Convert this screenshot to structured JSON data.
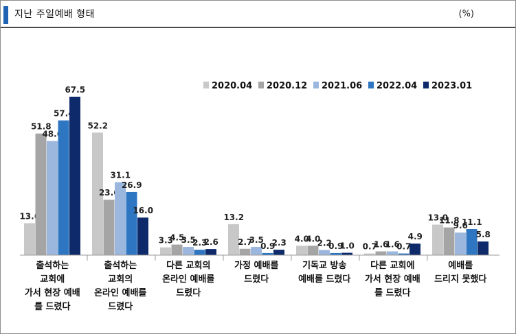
{
  "header": {
    "title": "지난 주일예배 형태",
    "unit": "(%)"
  },
  "chart_data": {
    "type": "bar",
    "categories": [
      [
        "출석하는",
        "교회에",
        "가서 현장 예배",
        "를 드렸다"
      ],
      [
        "출석하는",
        "교회의",
        "온라인 예배를",
        "드렸다"
      ],
      [
        "다른 교회의",
        "온라인 예배를",
        "드렸다"
      ],
      [
        "가정 예배를",
        "드렸다"
      ],
      [
        "기독교 방송",
        "예배를 드렸다"
      ],
      [
        "다른 교회에",
        "가서 현장 예배",
        "를 드렸다"
      ],
      [
        "예배를",
        "드리지 못했다"
      ]
    ],
    "series": [
      {
        "name": "2020.04",
        "color": "#c8c8c8",
        "values": [
          13.6,
          52.2,
          3.3,
          13.2,
          4.0,
          0.7,
          13.0
        ]
      },
      {
        "name": "2020.12",
        "color": "#a5a5a5",
        "values": [
          51.8,
          23.6,
          4.5,
          2.7,
          4.0,
          1.6,
          11.8
        ]
      },
      {
        "name": "2021.06",
        "color": "#9bb7dd",
        "values": [
          48.6,
          31.1,
          3.5,
          3.5,
          2.2,
          1.6,
          9.6
        ]
      },
      {
        "name": "2022.04",
        "color": "#2e75c2",
        "values": [
          57.4,
          26.9,
          2.3,
          0.9,
          0.9,
          0.7,
          11.1
        ]
      },
      {
        "name": "2023.01",
        "color": "#0e2a6b",
        "values": [
          67.5,
          16.0,
          2.6,
          2.3,
          1.0,
          4.9,
          5.8
        ]
      }
    ],
    "highlight_color": "#e02020",
    "highlights": [
      [
        0,
        4
      ],
      [
        1,
        4
      ]
    ],
    "ylim": [
      0,
      75
    ],
    "legend_position": "top-right",
    "grid": false
  }
}
